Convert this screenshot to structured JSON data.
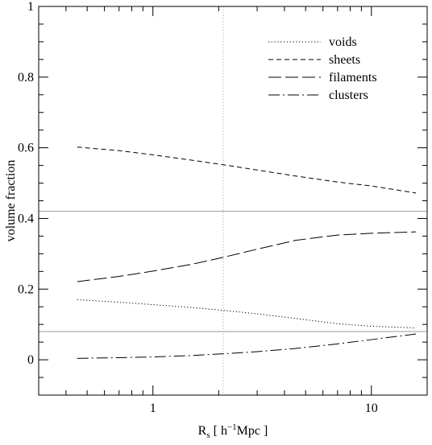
{
  "chart_data": {
    "type": "line",
    "title": "",
    "xlabel": "R",
    "xlabel_sub": "s",
    "xlabel_unit_pre": "[  h",
    "xlabel_unit_sup": "−1",
    "xlabel_unit_post": "Mpc  ]",
    "ylabel": "volume fraction",
    "xscale": "log",
    "xlim": [
      0.3,
      18
    ],
    "ylim": [
      -0.1,
      1.0
    ],
    "x_ticks": [
      1,
      10
    ],
    "x_tick_labels": [
      "1",
      "10"
    ],
    "y_ticks": [
      0,
      0.2,
      0.4,
      0.6,
      0.8,
      1.0
    ],
    "y_tick_labels": [
      "0",
      "0.2",
      "0.4",
      "0.6",
      "0.8",
      "1"
    ],
    "legend_position": "top-right",
    "grid": false,
    "series": [
      {
        "name": "voids",
        "style": "dotted",
        "x": [
          0.45,
          0.7,
          1.0,
          1.5,
          2.1,
          3.0,
          4.5,
          7.0,
          10.0,
          16.0
        ],
        "y": [
          0.17,
          0.163,
          0.156,
          0.148,
          0.14,
          0.13,
          0.117,
          0.102,
          0.095,
          0.09
        ]
      },
      {
        "name": "sheets",
        "style": "dashed",
        "x": [
          0.45,
          0.7,
          1.0,
          1.5,
          2.1,
          3.0,
          4.5,
          7.0,
          10.0,
          16.0
        ],
        "y": [
          0.602,
          0.592,
          0.58,
          0.565,
          0.552,
          0.537,
          0.52,
          0.503,
          0.492,
          0.472
        ]
      },
      {
        "name": "filaments",
        "style": "long-dash",
        "x": [
          0.45,
          0.7,
          1.0,
          1.5,
          2.1,
          3.0,
          4.5,
          7.0,
          10.0,
          16.0
        ],
        "y": [
          0.221,
          0.236,
          0.251,
          0.27,
          0.29,
          0.313,
          0.338,
          0.353,
          0.358,
          0.362
        ]
      },
      {
        "name": "clusters",
        "style": "dash-dot",
        "x": [
          0.45,
          0.7,
          1.0,
          1.5,
          2.1,
          3.0,
          4.5,
          7.0,
          10.0,
          16.0
        ],
        "y": [
          0.004,
          0.006,
          0.008,
          0.012,
          0.017,
          0.023,
          0.032,
          0.045,
          0.057,
          0.073
        ]
      }
    ],
    "reference_lines": {
      "horizontal": [
        0.42,
        0.08
      ],
      "vertical": [
        2.1
      ]
    }
  }
}
